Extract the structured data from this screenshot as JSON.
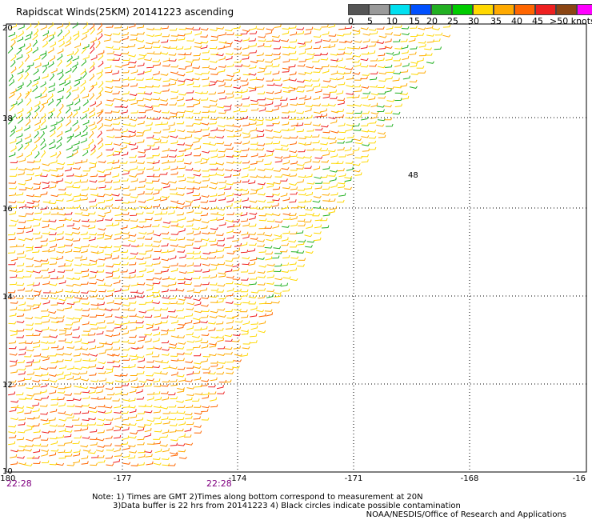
{
  "title": "Rapidscat Winds(25KM) 20141223 ascending",
  "legend": {
    "colors": [
      "#555555",
      "#9a9a9a",
      "#00e0f0",
      "#0050ff",
      "#22b022",
      "#00cc00",
      "#ffd800",
      "#ffaa00",
      "#ff6600",
      "#ee2020",
      "#8b4513",
      "#ff00ff",
      "#6a00b0"
    ],
    "labels": [
      "0",
      "5",
      "10",
      "15",
      "20",
      "25",
      "30",
      "35",
      "40",
      "45",
      ">50 knots"
    ]
  },
  "map": {
    "lat_labels": [
      "20",
      "18",
      "16",
      "14",
      "12",
      "10"
    ],
    "lon_labels": [
      "-180",
      "-177",
      "-174",
      "-171",
      "-168",
      "-16"
    ],
    "time_labels": [
      "22:28",
      "22:28"
    ],
    "marker_label": "48"
  },
  "notes": {
    "line1": "Note: 1) Times are GMT 2)Times along bottom correspond to measurement at 20N",
    "line2": "3)Data buffer is 22 hrs from 20141223 4) Black circles indicate possible contamination",
    "credit": "NOAA/NESDIS/Office of Research and Applications"
  },
  "wind_colors": {
    "calm": "#22b022",
    "light": "#ffd800",
    "moderate": "#ffaa00",
    "fresh": "#ff6600",
    "strong": "#ee2020"
  }
}
